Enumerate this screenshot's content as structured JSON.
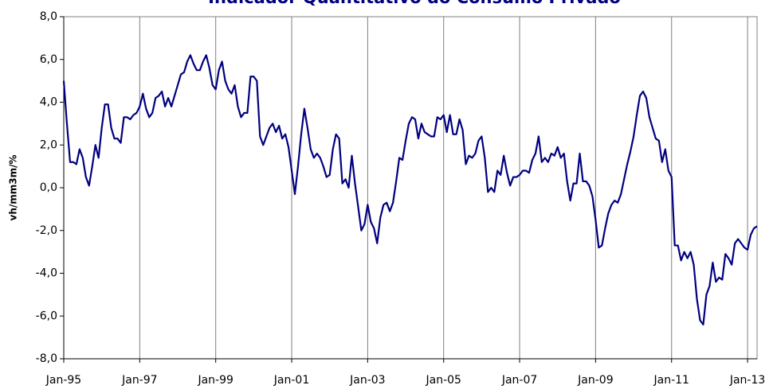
{
  "chart_data": {
    "type": "line",
    "title": "Indicador Quantitativo do Consumo Privado",
    "y_label": "vh/mm3m/%",
    "categories": [
      "Jan-95",
      null,
      null,
      null,
      null,
      null,
      null,
      null,
      null,
      null,
      null,
      null,
      null,
      null,
      null,
      null,
      null,
      null,
      null,
      null,
      null,
      null,
      null,
      null,
      "Jan-97",
      null,
      null,
      null,
      null,
      null,
      null,
      null,
      null,
      null,
      null,
      null,
      null,
      null,
      null,
      null,
      null,
      null,
      null,
      null,
      null,
      null,
      null,
      null,
      "Jan-99",
      null,
      null,
      null,
      null,
      null,
      null,
      null,
      null,
      null,
      null,
      null,
      null,
      null,
      null,
      null,
      null,
      null,
      null,
      null,
      null,
      null,
      null,
      null,
      "Jan-01",
      null,
      null,
      null,
      null,
      null,
      null,
      null,
      null,
      null,
      null,
      null,
      null,
      null,
      null,
      null,
      null,
      null,
      null,
      null,
      null,
      null,
      null,
      null,
      "Jan-03",
      null,
      null,
      null,
      null,
      null,
      null,
      null,
      null,
      null,
      null,
      null,
      null,
      null,
      null,
      null,
      null,
      null,
      null,
      null,
      null,
      null,
      null,
      null,
      "Jan-05",
      null,
      null,
      null,
      null,
      null,
      null,
      null,
      null,
      null,
      null,
      null,
      null,
      null,
      null,
      null,
      null,
      null,
      null,
      null,
      null,
      null,
      null,
      null,
      "Jan-07",
      null,
      null,
      null,
      null,
      null,
      null,
      null,
      null,
      null,
      null,
      null,
      null,
      null,
      null,
      null,
      null,
      null,
      null,
      null,
      null,
      null,
      null,
      null,
      "Jan-09",
      null,
      null,
      null,
      null,
      null,
      null,
      null,
      null,
      null,
      null,
      null,
      null,
      null,
      null,
      null,
      null,
      null,
      null,
      null,
      null,
      null,
      null,
      null,
      "Jan-11",
      null,
      null,
      null,
      null,
      null,
      null,
      null,
      null,
      null,
      null,
      null,
      null,
      null,
      null,
      null,
      null,
      null,
      null,
      null,
      null,
      null,
      null,
      null,
      "Jan-13",
      null,
      null,
      null
    ],
    "series": [
      {
        "color": "#000080",
        "values": [
          5.0,
          3.0,
          1.2,
          1.2,
          1.1,
          1.8,
          1.4,
          0.5,
          0.1,
          1.0,
          2.0,
          1.4,
          2.8,
          3.9,
          3.9,
          2.8,
          2.3,
          2.3,
          2.1,
          3.3,
          3.3,
          3.2,
          3.4,
          3.5,
          3.8,
          4.4,
          3.7,
          3.3,
          3.5,
          4.2,
          4.3,
          4.5,
          3.8,
          4.2,
          3.8,
          4.3,
          4.8,
          5.3,
          5.4,
          5.9,
          6.2,
          5.8,
          5.5,
          5.5,
          5.9,
          6.2,
          5.6,
          4.8,
          4.6,
          5.5,
          5.9,
          5.0,
          4.6,
          4.4,
          4.8,
          3.8,
          3.3,
          3.5,
          3.5,
          5.2,
          5.2,
          5.0,
          2.4,
          2.0,
          2.4,
          2.8,
          3.0,
          2.6,
          2.9,
          2.3,
          2.5,
          1.9,
          0.8,
          -0.3,
          1.0,
          2.5,
          3.7,
          2.8,
          1.8,
          1.4,
          1.6,
          1.4,
          1.0,
          0.5,
          0.6,
          1.8,
          2.5,
          2.3,
          0.2,
          0.4,
          0.0,
          1.5,
          0.2,
          -0.9,
          -2.0,
          -1.7,
          -0.8,
          -1.6,
          -1.9,
          -2.6,
          -1.4,
          -0.8,
          -0.7,
          -1.1,
          -0.7,
          0.3,
          1.4,
          1.3,
          2.2,
          3.0,
          3.3,
          3.2,
          2.3,
          3.0,
          2.6,
          2.5,
          2.4,
          2.4,
          3.3,
          3.2,
          3.4,
          2.6,
          3.4,
          2.5,
          2.5,
          3.2,
          2.7,
          1.1,
          1.5,
          1.4,
          1.6,
          2.2,
          2.4,
          1.4,
          -0.2,
          0.0,
          -0.2,
          0.8,
          0.6,
          1.5,
          0.7,
          0.1,
          0.5,
          0.5,
          0.6,
          0.8,
          0.8,
          0.7,
          1.3,
          1.6,
          2.4,
          1.2,
          1.4,
          1.2,
          1.6,
          1.5,
          1.9,
          1.4,
          1.6,
          0.3,
          -0.6,
          0.2,
          0.2,
          1.6,
          0.3,
          0.3,
          0.1,
          -0.4,
          -1.5,
          -2.8,
          -2.7,
          -1.9,
          -1.2,
          -0.8,
          -0.6,
          -0.7,
          -0.3,
          0.4,
          1.1,
          1.7,
          2.4,
          3.4,
          4.3,
          4.5,
          4.2,
          3.3,
          2.8,
          2.3,
          2.2,
          1.2,
          1.8,
          0.8,
          0.5,
          -2.7,
          -2.7,
          -3.4,
          -3.0,
          -3.3,
          -3.0,
          -3.6,
          -5.2,
          -6.2,
          -6.4,
          -5.0,
          -4.6,
          -3.5,
          -4.4,
          -4.2,
          -4.3,
          -3.1,
          -3.3,
          -3.6,
          -2.6,
          -2.4,
          -2.6,
          -2.8,
          -2.9,
          -2.2,
          -1.9,
          -1.8
        ]
      }
    ],
    "ylim": [
      -8,
      8
    ],
    "yticks": [
      {
        "value": -8,
        "label": "-8,0"
      },
      {
        "value": -6,
        "label": "-6,0"
      },
      {
        "value": -4,
        "label": "-4,0"
      },
      {
        "value": -2,
        "label": "-2,0"
      },
      {
        "value": 0,
        "label": "0,0"
      },
      {
        "value": 2,
        "label": "2,0"
      },
      {
        "value": 4,
        "label": "4,0"
      },
      {
        "value": 6,
        "label": "6,0"
      },
      {
        "value": 8,
        "label": "8,0"
      }
    ],
    "grid": "x"
  }
}
